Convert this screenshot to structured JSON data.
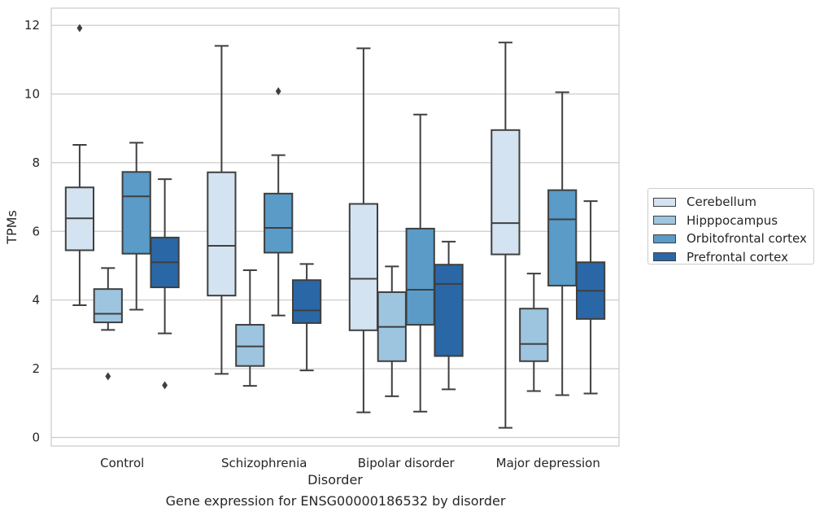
{
  "chart_data": {
    "type": "box",
    "caption": "Gene expression for ENSG00000186532 by disorder",
    "xlabel": "Disorder",
    "ylabel": "TPMs",
    "ylim": [
      -0.25,
      12.5
    ],
    "yticks": [
      "0",
      "2",
      "4",
      "6",
      "8",
      "10",
      "12"
    ],
    "grid": true,
    "legend_position": "right",
    "categories": [
      "Control",
      "Schizophrenia",
      "Bipolar disorder",
      "Major depression"
    ],
    "series": [
      {
        "name": "Cerebellum",
        "color": "#d4e3f2",
        "boxes": [
          {
            "whisker_low": 3.85,
            "q1": 5.45,
            "median": 6.38,
            "q3": 7.28,
            "whisker_high": 8.52,
            "outliers": [
              11.92
            ]
          },
          {
            "whisker_low": 1.85,
            "q1": 4.13,
            "median": 5.58,
            "q3": 7.72,
            "whisker_high": 11.4,
            "outliers": []
          },
          {
            "whisker_low": 0.73,
            "q1": 3.12,
            "median": 4.62,
            "q3": 6.8,
            "whisker_high": 11.33,
            "outliers": []
          },
          {
            "whisker_low": 0.28,
            "q1": 5.33,
            "median": 6.24,
            "q3": 8.95,
            "whisker_high": 11.5,
            "outliers": []
          }
        ]
      },
      {
        "name": "Hipppocampus",
        "color": "#9ec5df",
        "boxes": [
          {
            "whisker_low": 3.13,
            "q1": 3.35,
            "median": 3.6,
            "q3": 4.32,
            "whisker_high": 4.93,
            "outliers": [
              1.78
            ]
          },
          {
            "whisker_low": 1.5,
            "q1": 2.08,
            "median": 2.65,
            "q3": 3.28,
            "whisker_high": 4.87,
            "outliers": []
          },
          {
            "whisker_low": 1.2,
            "q1": 2.22,
            "median": 3.22,
            "q3": 4.23,
            "whisker_high": 4.98,
            "outliers": []
          },
          {
            "whisker_low": 1.35,
            "q1": 2.22,
            "median": 2.72,
            "q3": 3.75,
            "whisker_high": 4.77,
            "outliers": []
          }
        ]
      },
      {
        "name": "Orbitofrontal cortex",
        "color": "#5a9bc7",
        "boxes": [
          {
            "whisker_low": 3.72,
            "q1": 5.35,
            "median": 7.02,
            "q3": 7.73,
            "whisker_high": 8.58,
            "outliers": []
          },
          {
            "whisker_low": 3.55,
            "q1": 5.38,
            "median": 6.1,
            "q3": 7.1,
            "whisker_high": 8.22,
            "outliers": [
              10.08
            ]
          },
          {
            "whisker_low": 0.75,
            "q1": 3.28,
            "median": 4.3,
            "q3": 6.08,
            "whisker_high": 9.4,
            "outliers": []
          },
          {
            "whisker_low": 1.23,
            "q1": 4.42,
            "median": 6.35,
            "q3": 7.2,
            "whisker_high": 10.05,
            "outliers": []
          }
        ]
      },
      {
        "name": "Prefrontal cortex",
        "color": "#2a67a6",
        "boxes": [
          {
            "whisker_low": 3.03,
            "q1": 4.37,
            "median": 5.1,
            "q3": 5.82,
            "whisker_high": 7.52,
            "outliers": [
              1.52
            ]
          },
          {
            "whisker_low": 1.95,
            "q1": 3.33,
            "median": 3.7,
            "q3": 4.58,
            "whisker_high": 5.05,
            "outliers": []
          },
          {
            "whisker_low": 1.4,
            "q1": 2.37,
            "median": 4.47,
            "q3": 5.03,
            "whisker_high": 5.7,
            "outliers": []
          },
          {
            "whisker_low": 1.28,
            "q1": 3.45,
            "median": 4.27,
            "q3": 5.1,
            "whisker_high": 6.88,
            "outliers": []
          }
        ]
      }
    ]
  }
}
